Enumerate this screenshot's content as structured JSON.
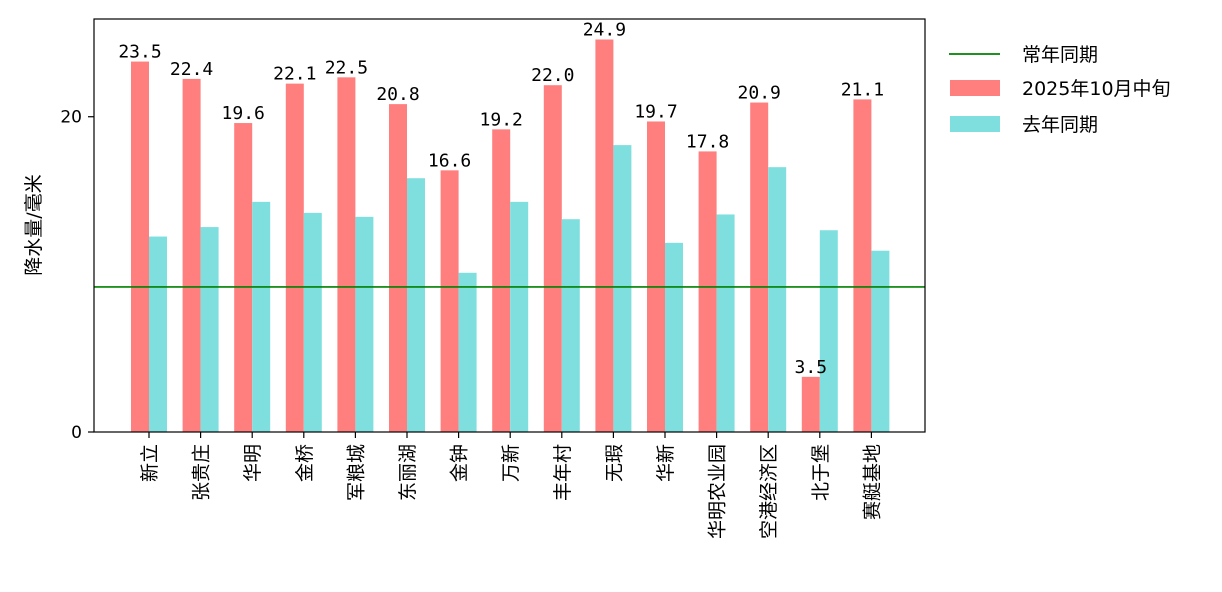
{
  "chart_data": {
    "type": "bar",
    "title": "",
    "xlabel": "",
    "ylabel": "降水量/毫米",
    "ylim": [
      0,
      26.2
    ],
    "yticks": [
      0,
      20
    ],
    "categories": [
      "新立",
      "张贵庄",
      "华明",
      "金桥",
      "军粮城",
      "东丽湖",
      "金钟",
      "万新",
      "丰年村",
      "无瑕",
      "华新",
      "华明农业园",
      "空港经济区",
      "北于堡",
      "赛艇基地"
    ],
    "series": [
      {
        "name": "2025年10月中旬",
        "color": "#ff7f7f",
        "values": [
          23.5,
          22.4,
          19.6,
          22.1,
          22.5,
          20.8,
          16.6,
          19.2,
          22.0,
          24.9,
          19.7,
          17.8,
          20.9,
          3.5,
          21.1
        ],
        "labels": [
          "23.5",
          "22.4",
          "19.6",
          "22.1",
          "22.5",
          "20.8",
          "16.6",
          "19.2",
          "22.0",
          "24.9",
          "19.7",
          "17.8",
          "20.9",
          "3.5",
          "21.1"
        ]
      },
      {
        "name": "去年同期",
        "color": "#7fdfdf",
        "values": [
          12.4,
          13.0,
          14.6,
          13.9,
          13.65,
          16.1,
          10.1,
          14.6,
          13.5,
          18.2,
          12.0,
          13.8,
          16.8,
          12.8,
          11.5
        ]
      }
    ],
    "reference_line": {
      "name": "常年同期",
      "value": 9.2,
      "color": "#008000"
    },
    "legend": {
      "placement": "outside-top-right",
      "entries": [
        "常年同期",
        "2025年10月中旬",
        "去年同期"
      ]
    },
    "grid": false
  }
}
